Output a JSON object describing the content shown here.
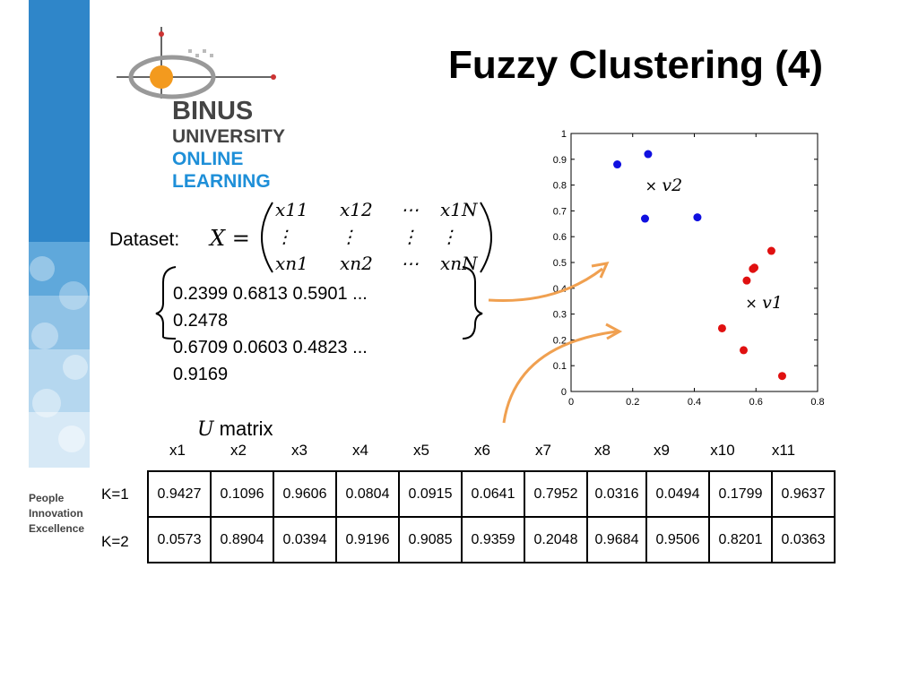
{
  "title": "Fuzzy Clustering (4)",
  "logo": {
    "line1": "BINUS",
    "line2": "UNIVERSITY",
    "line3": "ONLINE",
    "line4": "LEARNING"
  },
  "motto": {
    "line1": "People",
    "line2": "Innovation",
    "line3": "Excellence"
  },
  "dataset_label": "Dataset:",
  "matrix_symbol": "X =",
  "matrix_cells": [
    [
      "x11",
      "x12",
      "⋯",
      "x1N"
    ],
    [
      "⋮",
      "⋮",
      "⋮",
      "⋮"
    ],
    [
      "xn1",
      "xn2",
      "⋯",
      "xnN"
    ]
  ],
  "data_lines": [
    " 0.2399    0.6813   0.5901  ...",
    "0.2478",
    " 0.6709    0.0603   0.4823  ...",
    "0.9169"
  ],
  "u_matrix_label": {
    "symbol": "U",
    "text": "matrix"
  },
  "u_table": {
    "columns": [
      "x1",
      "x2",
      "x3",
      "x4",
      "x5",
      "x6",
      "x7",
      "x8",
      "x9",
      "x10",
      "x11"
    ],
    "rows": [
      {
        "label": "K=1",
        "values": [
          "0.9427",
          "0.1096",
          "0.9606",
          "0.0804",
          "0.0915",
          "0.0641",
          "0.7952",
          "0.0316",
          "0.0494",
          "0.1799",
          "0.9637"
        ]
      },
      {
        "label": "K=2",
        "values": [
          "0.0573",
          "0.8904",
          "0.0394",
          "0.9196",
          "0.9085",
          "0.9359",
          "0.2048",
          "0.9684",
          "0.9506",
          "0.8201",
          "0.0363"
        ]
      }
    ]
  },
  "chart_data": {
    "type": "scatter",
    "xlim": [
      0,
      0.8
    ],
    "ylim": [
      0,
      1
    ],
    "xticks": [
      "0",
      "0.2",
      "0.4",
      "0.6",
      "0.8"
    ],
    "yticks": [
      "0",
      "0.1",
      "0.2",
      "0.3",
      "0.4",
      "0.5",
      "0.6",
      "0.7",
      "0.8",
      "0.9",
      "1"
    ],
    "grid": false,
    "series": [
      {
        "color": "#1010e0",
        "points": [
          [
            0.15,
            0.88
          ],
          [
            0.25,
            0.92
          ],
          [
            0.24,
            0.67
          ],
          [
            0.41,
            0.675
          ]
        ]
      },
      {
        "color": "#e01010",
        "points": [
          [
            0.65,
            0.545
          ],
          [
            0.595,
            0.48
          ],
          [
            0.59,
            0.475
          ],
          [
            0.57,
            0.43
          ],
          [
            0.49,
            0.245
          ],
          [
            0.56,
            0.16
          ],
          [
            0.685,
            0.06
          ]
        ]
      }
    ],
    "centroids": [
      {
        "label": "v2",
        "x": 0.26,
        "y": 0.795
      },
      {
        "label": "v1",
        "x": 0.585,
        "y": 0.34
      }
    ]
  },
  "colors": {
    "sidebar_blue": "#2f86c9",
    "arrow_orange": "#f0a050",
    "logo_orange": "#f39a1e",
    "logo_blue": "#1e8fd8"
  }
}
